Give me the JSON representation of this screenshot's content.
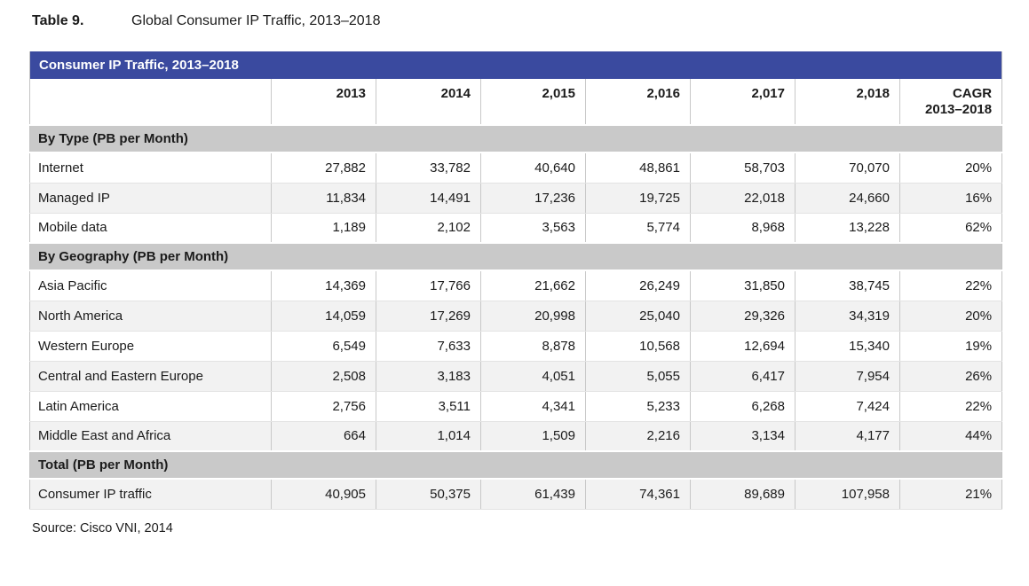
{
  "title": {
    "label": "Table 9.",
    "caption": "Global Consumer IP Traffic, 2013–2018"
  },
  "table": {
    "header_bar": "Consumer IP Traffic, 2013–2018",
    "year_columns": [
      "2013",
      "2014",
      "2,015",
      "2,016",
      "2,017",
      "2,018"
    ],
    "cagr_header": {
      "line1": "CAGR",
      "line2": "2013–2018"
    },
    "sections": [
      {
        "header": "By Type (PB per Month)",
        "rows": [
          {
            "label": "Internet",
            "values": [
              "27,882",
              "33,782",
              "40,640",
              "48,861",
              "58,703",
              "70,070",
              "20%"
            ]
          },
          {
            "label": "Managed IP",
            "values": [
              "11,834",
              "14,491",
              "17,236",
              "19,725",
              "22,018",
              "24,660",
              "16%"
            ]
          },
          {
            "label": "Mobile data",
            "values": [
              "1,189",
              "2,102",
              "3,563",
              "5,774",
              "8,968",
              "13,228",
              "62%"
            ]
          }
        ]
      },
      {
        "header": "By Geography (PB per Month)",
        "rows": [
          {
            "label": "Asia Pacific",
            "values": [
              "14,369",
              "17,766",
              "21,662",
              "26,249",
              "31,850",
              "38,745",
              "22%"
            ]
          },
          {
            "label": "North America",
            "values": [
              "14,059",
              "17,269",
              "20,998",
              "25,040",
              "29,326",
              "34,319",
              "20%"
            ]
          },
          {
            "label": "Western Europe",
            "values": [
              "6,549",
              "7,633",
              "8,878",
              "10,568",
              "12,694",
              "15,340",
              "19%"
            ]
          },
          {
            "label": "Central and Eastern Europe",
            "values": [
              "2,508",
              "3,183",
              "4,051",
              "5,055",
              "6,417",
              "7,954",
              "26%"
            ]
          },
          {
            "label": "Latin America",
            "values": [
              "2,756",
              "3,511",
              "4,341",
              "5,233",
              "6,268",
              "7,424",
              "22%"
            ]
          },
          {
            "label": "Middle East and Africa",
            "values": [
              "664",
              "1,014",
              "1,509",
              "2,216",
              "3,134",
              "4,177",
              "44%"
            ]
          }
        ]
      },
      {
        "header": "Total (PB per Month)",
        "rows": [
          {
            "label": "Consumer IP traffic",
            "values": [
              "40,905",
              "50,375",
              "61,439",
              "74,361",
              "89,689",
              "107,958",
              "21%"
            ]
          }
        ]
      }
    ]
  },
  "source": "Source: Cisco VNI, 2014",
  "colors": {
    "header_blue": "#3a4a9f",
    "section_gray": "#c9c9c9",
    "row_stripe": "#f2f2f2"
  }
}
